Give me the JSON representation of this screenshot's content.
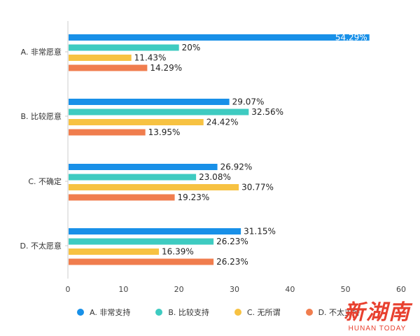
{
  "chart_data": {
    "type": "bar",
    "orientation": "horizontal",
    "title": "",
    "xlabel": "",
    "ylabel": "",
    "xlim": [
      0,
      60
    ],
    "x_ticks": [
      "0",
      "10",
      "20",
      "30",
      "40",
      "50",
      "60"
    ],
    "grid": false,
    "legend_position": "bottom",
    "categories": [
      "A. 非常愿意",
      "B. 比较愿意",
      "C. 不确定",
      "D. 不太愿意"
    ],
    "series": [
      {
        "name": "A. 非常支持",
        "color": "#1890e8",
        "values": [
          54.29,
          29.07,
          26.92,
          31.15
        ],
        "labels": [
          "54.29%",
          "29.07%",
          "26.92%",
          "31.15%"
        ]
      },
      {
        "name": "B. 比较支持",
        "color": "#3ecbc1",
        "values": [
          20,
          32.56,
          23.08,
          26.23
        ],
        "labels": [
          "20%",
          "32.56%",
          "23.08%",
          "26.23%"
        ]
      },
      {
        "name": "C. 无所谓",
        "color": "#f7c242",
        "values": [
          11.43,
          24.42,
          30.77,
          16.39
        ],
        "labels": [
          "11.43%",
          "24.42%",
          "30.77%",
          "16.39%"
        ]
      },
      {
        "name": "D. 不太支持",
        "color": "#f07d4e",
        "values": [
          14.29,
          13.95,
          19.23,
          26.23
        ],
        "labels": [
          "14.29%",
          "13.95%",
          "19.23%",
          "26.23%"
        ]
      }
    ]
  },
  "watermark": {
    "chinese": "新湖南",
    "english": "HUNAN TODAY"
  }
}
